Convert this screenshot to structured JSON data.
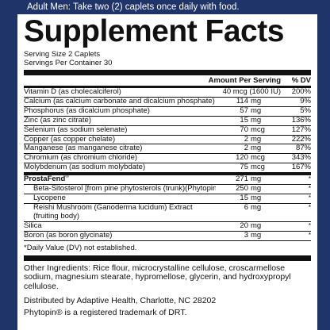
{
  "banner": "Adult Men: Take two (2) caplets once daily with food.",
  "title": "Supplement Facts",
  "serving_size": "Serving Size 2 Caplets",
  "servings_per_container": "Servings Per Container 30",
  "col_amount": "Amount Per Serving",
  "col_dv": "% DV",
  "nutrients": [
    {
      "name": "Vitamin D (as cholecalciferol)",
      "amount": "40 mcg (1600 IU)",
      "dv": "200%"
    },
    {
      "name": "Calcium (as calcium carbonate and dicalcium phosphate)",
      "num": "114",
      "unit": "mg",
      "dv": "9%"
    },
    {
      "name": "Phosphorus (as dicalcium phosphate)",
      "num": "57",
      "unit": "mg",
      "dv": "5%"
    },
    {
      "name": "Zinc (as zinc citrate)",
      "num": "15",
      "unit": "mg",
      "dv": "136%"
    },
    {
      "name": "Selenium (as sodium selenate)",
      "num": "70",
      "unit": "mcg",
      "dv": "127%"
    },
    {
      "name": "Copper (as copper chelate)",
      "num": "2",
      "unit": "mg",
      "dv": "222%"
    },
    {
      "name": "Manganese (as manganese citrate)",
      "num": "2",
      "unit": "mg",
      "dv": "87%"
    },
    {
      "name": "Chromium (as chromium chloride)",
      "num": "120",
      "unit": "mcg",
      "dv": "343%"
    },
    {
      "name": "Molybdenum (as sodium molybdate)",
      "num": "75",
      "unit": "mcg",
      "dv": "167%"
    }
  ],
  "blend": {
    "name": "ProstaFend",
    "mark": "®",
    "num": "271",
    "unit": "mg",
    "dv": "*",
    "items": [
      {
        "name": "Beta-Sitosterol [from pine phytosterols (trunk)(Phytopin®)]",
        "num": "250",
        "unit": "mg",
        "dv": "*"
      },
      {
        "name": "Lycopene",
        "num": "15",
        "unit": "mg",
        "dv": "*"
      },
      {
        "name_line1": "Reishi Mushroom (Ganoderma lucidum) Extract",
        "name_line2": "(fruiting body)",
        "num": "6",
        "unit": "mg",
        "dv": "*"
      }
    ]
  },
  "others": [
    {
      "name": "Silica",
      "num": "20",
      "unit": "mg",
      "dv": "*"
    },
    {
      "name": "Boron (as boron glycinate)",
      "num": "3",
      "unit": "mg",
      "dv": "*"
    }
  ],
  "footnote": "*Daily Value (DV) not established.",
  "other_ingredients": "Other Ingredients: Rice flour, microcrystalline cellulose, croscarmellose sodium, magnesium stearate, hypromellose, glycerin, and hydroxypropyl cellulose.",
  "distributor": "Distributed by Adaptive Health, Charlotte, NC 28202",
  "trademark": "Phytopin® is a registered trademark of DRT."
}
